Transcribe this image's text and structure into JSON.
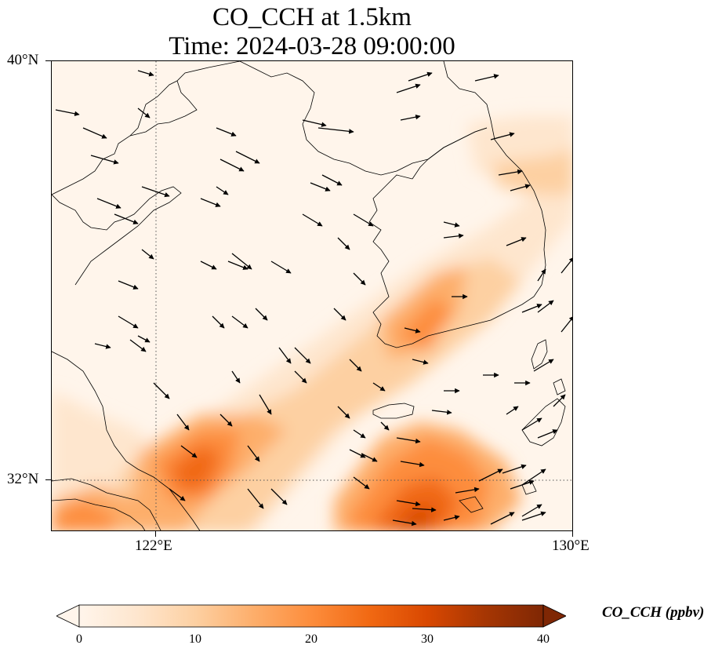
{
  "title_line1": "CO_CCH at 1.5km",
  "title_line2": "Time: 2024-03-28 09:00:00",
  "lat_labels": [
    "40°N",
    "32°N"
  ],
  "lon_labels": [
    "122°E",
    "130°E"
  ],
  "colorbar": {
    "label": "CO_CCH (ppbv)",
    "ticks": [
      "0",
      "10",
      "20",
      "30",
      "40"
    ],
    "min": 0,
    "max": 40,
    "extend": "both",
    "colormap": [
      "#fff5eb",
      "#fee6ce",
      "#fdd0a2",
      "#fdae6b",
      "#fd8d3c",
      "#f16913",
      "#d94801",
      "#a63603",
      "#7f2704"
    ]
  },
  "map": {
    "lon_range": [
      120,
      130
    ],
    "lat_range": [
      31,
      40
    ],
    "gridlines": {
      "lon": [
        122
      ],
      "lat": [
        32
      ],
      "style": "dotted"
    },
    "coastline_color": "#000000",
    "wind_arrow_color": "#000000"
  }
}
